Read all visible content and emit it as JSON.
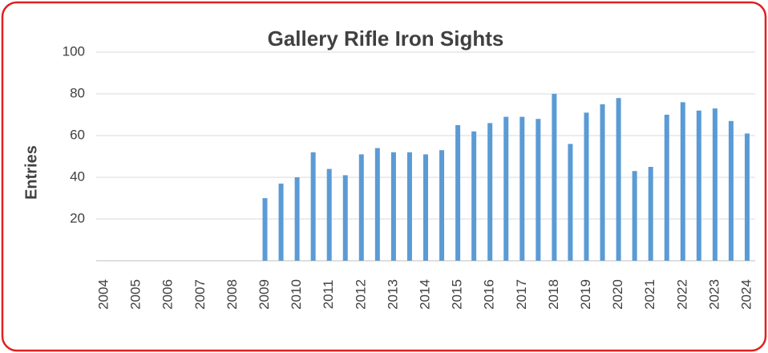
{
  "chart_data": {
    "type": "bar",
    "title": "Gallery Rifle Iron Sights",
    "y_label": "Entries",
    "categories": [
      "2004",
      null,
      "2005",
      null,
      "2006",
      null,
      "2007",
      null,
      "2008",
      null,
      "2009",
      null,
      "2010",
      null,
      "2011",
      null,
      "2012",
      null,
      "2013",
      null,
      "2014",
      null,
      "2015",
      null,
      "2016",
      null,
      "2017",
      null,
      "2018",
      null,
      "2019",
      null,
      "2020",
      null,
      "2021",
      null,
      "2022",
      null,
      "2023",
      null,
      "2024"
    ],
    "values": [
      null,
      null,
      null,
      null,
      null,
      null,
      null,
      null,
      null,
      null,
      30,
      37,
      40,
      52,
      44,
      41,
      51,
      54,
      52,
      52,
      51,
      53,
      65,
      62,
      66,
      69,
      69,
      68,
      80,
      56,
      71,
      75,
      78,
      43,
      45,
      70,
      76,
      72,
      73,
      67,
      61
    ],
    "color": "#5b9bd5",
    "ylim": [
      0,
      100
    ],
    "yticks": [
      20,
      40,
      60,
      80,
      100
    ],
    "grid": true
  }
}
